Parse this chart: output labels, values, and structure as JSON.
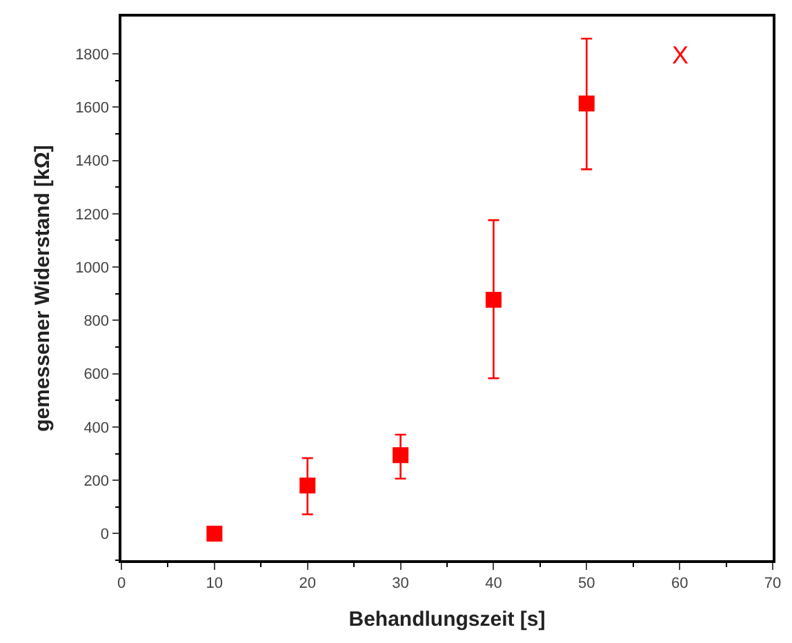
{
  "chart_data": {
    "type": "scatter",
    "xlabel": "Behandlungszeit [s]",
    "ylabel": "gemessener Widerstand [kΩ]",
    "x": [
      10,
      20,
      30,
      40,
      50
    ],
    "series": [
      {
        "color": "#ff0000",
        "values": [
          0,
          180,
          294,
          877,
          1614
        ],
        "errors": [
          null,
          [
            72,
            283
          ],
          [
            206,
            371
          ],
          [
            583,
            1176
          ],
          [
            1367,
            1857
          ]
        ]
      }
    ],
    "annotations": [
      "X"
    ],
    "xlim": [
      0,
      70
    ],
    "xticks": [
      0,
      10,
      20,
      30,
      40,
      50,
      60,
      70
    ],
    "ylim": [
      -100,
      1940
    ],
    "yticks": [
      0,
      200,
      400,
      600,
      800,
      1000,
      1200,
      1400,
      1600,
      1800
    ],
    "marker": "square"
  }
}
